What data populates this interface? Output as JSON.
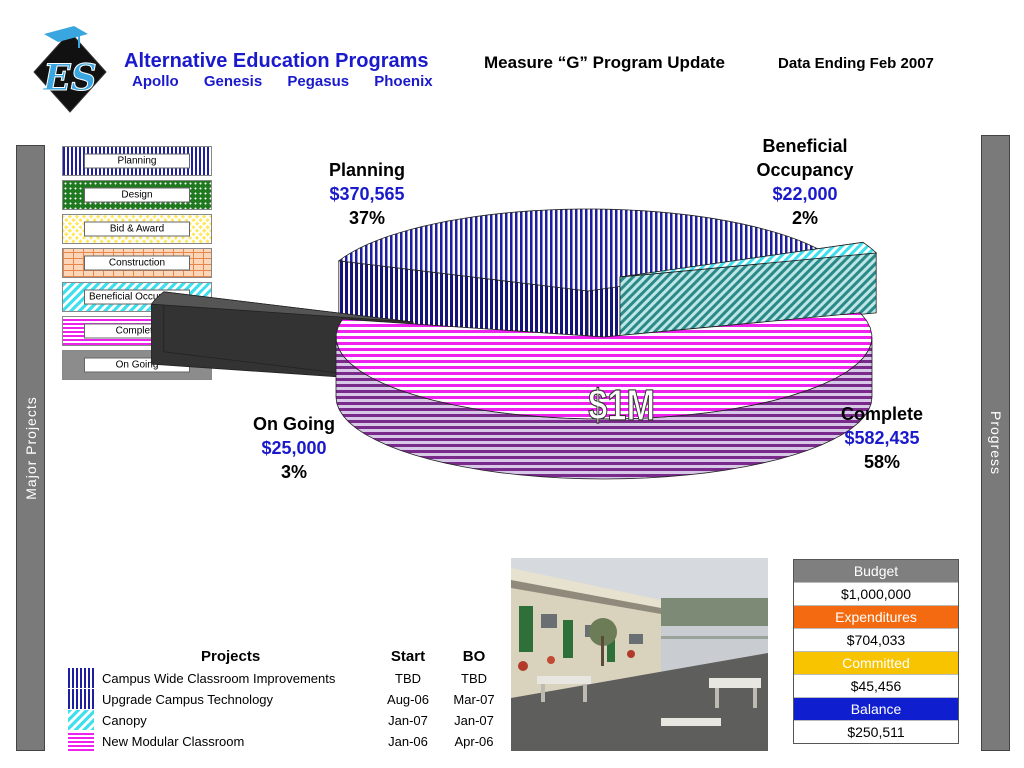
{
  "header": {
    "title": "Alternative Education Programs",
    "subtitle": "Measure “G” Program Update",
    "data_ending": "Data Ending Feb 2007",
    "programs": [
      "Apollo",
      "Genesis",
      "Pegasus",
      "Phoenix"
    ]
  },
  "logo": {
    "text": "ES"
  },
  "sidebars": {
    "left": "Major Projects",
    "right": "Progress"
  },
  "legend": {
    "items": [
      {
        "label": "Planning",
        "pattern": "planning"
      },
      {
        "label": "Design",
        "pattern": "design"
      },
      {
        "label": "Bid & Award",
        "pattern": "bid"
      },
      {
        "label": "Construction",
        "pattern": "construction"
      },
      {
        "label": "Beneficial Occupancy",
        "pattern": "bo"
      },
      {
        "label": "Complete",
        "pattern": "complete"
      },
      {
        "label": "On Going",
        "pattern": "ongoing"
      }
    ]
  },
  "chart_data": {
    "type": "pie",
    "center_label": "$1M",
    "slices": [
      {
        "name": "Planning",
        "amount": "$370,565",
        "percent": "37%",
        "value": 370565,
        "color": "#1e1ea0"
      },
      {
        "name": "Beneficial Occupancy",
        "amount": "$22,000",
        "percent": "2%",
        "value": 22000,
        "color": "#3ee0ee"
      },
      {
        "name": "Complete",
        "amount": "$582,435",
        "percent": "58%",
        "value": 582435,
        "color": "#ee22ee"
      },
      {
        "name": "On Going",
        "amount": "$25,000",
        "percent": "3%",
        "value": 25000,
        "color": "#666666"
      }
    ]
  },
  "labels": {
    "planning": {
      "name": "Planning",
      "amount": "$370,565",
      "percent": "37%"
    },
    "bo": {
      "name_line1": "Beneficial",
      "name_line2": "Occupancy",
      "amount": "$22,000",
      "percent": "2%"
    },
    "complete": {
      "name": "Complete",
      "amount": "$582,435",
      "percent": "58%"
    },
    "ongoing": {
      "name": "On Going",
      "amount": "$25,000",
      "percent": "3%"
    }
  },
  "budget": {
    "budget_label": "Budget",
    "budget_value": "$1,000,000",
    "exp_label": "Expenditures",
    "exp_value": "$704,033",
    "com_label": "Committed",
    "com_value": "$45,456",
    "bal_label": "Balance",
    "bal_value": "$250,511"
  },
  "projects": {
    "headers": {
      "name": "Projects",
      "start": "Start",
      "bo": "BO"
    },
    "rows": [
      {
        "name": "Campus Wide Classroom Improvements",
        "start": "TBD",
        "bo": "TBD"
      },
      {
        "name": "Upgrade Campus Technology",
        "start": "Aug-06",
        "bo": "Mar-07"
      },
      {
        "name": "Canopy",
        "start": "Jan-07",
        "bo": "Jan-07"
      },
      {
        "name": "New Modular Classroom",
        "start": "Jan-06",
        "bo": "Apr-06"
      }
    ]
  }
}
